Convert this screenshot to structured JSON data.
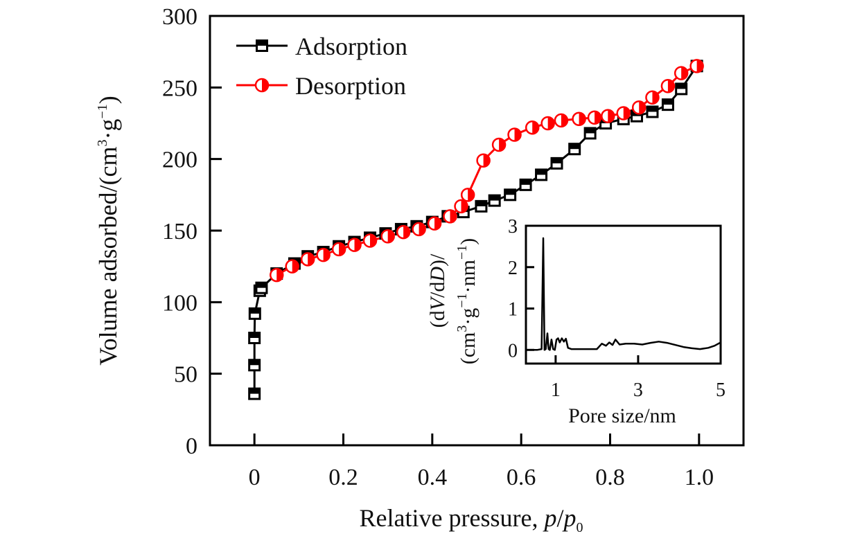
{
  "chart_data": [
    {
      "type": "line",
      "title": "",
      "xlabel": "Relative pressure, p/p0",
      "xlabel_parts": {
        "main": "Relative pressure, ",
        "italic1": "p",
        "slash": "/",
        "italic2": "p",
        "sub": "0"
      },
      "ylabel": "Volume adsorbed/(cm3·g-1)",
      "ylabel_parts": {
        "main": "Volume adsorbed/(cm",
        "sup1": "3",
        "mid": "·g",
        "sup2": "−1",
        "end": ")"
      },
      "xlim": [
        -0.1,
        1.1
      ],
      "ylim": [
        0,
        300
      ],
      "xticks": [
        0,
        0.2,
        0.4,
        0.6,
        0.8,
        1.0
      ],
      "xtick_labels": [
        "0",
        "0.2",
        "0.4",
        "0.6",
        "0.8",
        "1.0"
      ],
      "yticks": [
        0,
        50,
        100,
        150,
        200,
        250,
        300
      ],
      "ytick_labels": [
        "0",
        "50",
        "100",
        "150",
        "200",
        "250",
        "300"
      ],
      "grid": false,
      "legend_position": "top-left",
      "series": [
        {
          "name": "Adsorption",
          "color": "#000000",
          "marker": "half-filled-square",
          "x": [
            0.0,
            0.0,
            0.0,
            0.001,
            0.012,
            0.016,
            0.05,
            0.09,
            0.12,
            0.155,
            0.19,
            0.225,
            0.26,
            0.295,
            0.33,
            0.365,
            0.4,
            0.435,
            0.47,
            0.51,
            0.54,
            0.575,
            0.61,
            0.645,
            0.68,
            0.72,
            0.755,
            0.79,
            0.83,
            0.86,
            0.895,
            0.93,
            0.96,
            0.995
          ],
          "y": [
            36,
            56,
            75,
            92,
            108,
            110,
            120,
            127,
            132,
            135,
            139,
            142,
            145,
            148,
            151,
            153,
            156,
            160,
            163,
            167,
            171,
            175,
            182,
            189,
            197,
            207,
            218,
            225,
            228,
            230,
            233,
            238,
            249,
            265
          ]
        },
        {
          "name": "Desorption",
          "color": "#ff0000",
          "marker": "half-filled-circle",
          "x": [
            0.995,
            0.96,
            0.93,
            0.895,
            0.865,
            0.83,
            0.795,
            0.765,
            0.73,
            0.69,
            0.66,
            0.625,
            0.585,
            0.55,
            0.515,
            0.48,
            0.465,
            0.44,
            0.405,
            0.37,
            0.335,
            0.3,
            0.26,
            0.225,
            0.19,
            0.155,
            0.12,
            0.085,
            0.05
          ],
          "y": [
            265,
            260,
            251,
            243,
            236,
            232,
            230,
            229,
            228,
            227,
            225,
            222,
            217,
            210,
            199,
            175,
            167,
            160,
            155,
            151,
            149,
            146,
            143,
            140,
            137,
            133,
            130,
            125,
            119
          ]
        }
      ]
    },
    {
      "type": "line",
      "title": "",
      "role": "inset",
      "xlabel": "Pore size/nm",
      "ylabel": "(dV/dD)/(cm3·g-1·nm-1)",
      "ylabel_line1_parts": {
        "open": "(d",
        "italic1": "V",
        "mid": "/d",
        "italic2": "D",
        "close": ")/"
      },
      "ylabel_line2_parts": {
        "main": "(cm",
        "sup1": "3",
        "mid1": "·g",
        "sup2": "−1",
        "mid2": "·nm",
        "sup3": "−1",
        "end": ")"
      },
      "xlim": [
        0.28,
        5.0
      ],
      "ylim": [
        -0.33,
        3.0
      ],
      "xticks": [
        1,
        3,
        5
      ],
      "xtick_labels": [
        "1",
        "3",
        "5"
      ],
      "yticks": [
        0,
        1,
        2,
        3
      ],
      "ytick_labels": [
        "0",
        "1",
        "2",
        "3"
      ],
      "grid": false,
      "series": [
        {
          "name": "Pore size distribution",
          "color": "#000000",
          "x": [
            0.28,
            0.55,
            0.66,
            0.7,
            0.73,
            0.76,
            0.8,
            0.83,
            0.86,
            0.9,
            0.94,
            0.98,
            1.02,
            1.06,
            1.1,
            1.15,
            1.2,
            1.25,
            1.3,
            1.38,
            1.45,
            1.6,
            1.8,
            2.0,
            2.12,
            2.22,
            2.3,
            2.38,
            2.45,
            2.55,
            2.7,
            2.9,
            3.1,
            3.3,
            3.5,
            3.7,
            3.9,
            4.1,
            4.3,
            4.5,
            4.7,
            4.85,
            5.0
          ],
          "y": [
            0.0,
            0.0,
            0.02,
            2.7,
            0.0,
            0.02,
            0.4,
            0.02,
            0.0,
            0.25,
            0.02,
            0.0,
            0.25,
            0.28,
            0.18,
            0.28,
            0.2,
            0.27,
            0.05,
            0.02,
            0.02,
            0.02,
            0.02,
            0.02,
            0.15,
            0.1,
            0.18,
            0.12,
            0.25,
            0.13,
            0.15,
            0.15,
            0.13,
            0.17,
            0.2,
            0.17,
            0.12,
            0.07,
            0.04,
            0.02,
            0.05,
            0.1,
            0.18
          ]
        }
      ]
    }
  ],
  "legend": {
    "items": [
      {
        "label": "Adsorption",
        "color": "#000000",
        "marker": "half-filled-square"
      },
      {
        "label": "Desorption",
        "color": "#ff0000",
        "marker": "half-filled-circle"
      }
    ]
  }
}
